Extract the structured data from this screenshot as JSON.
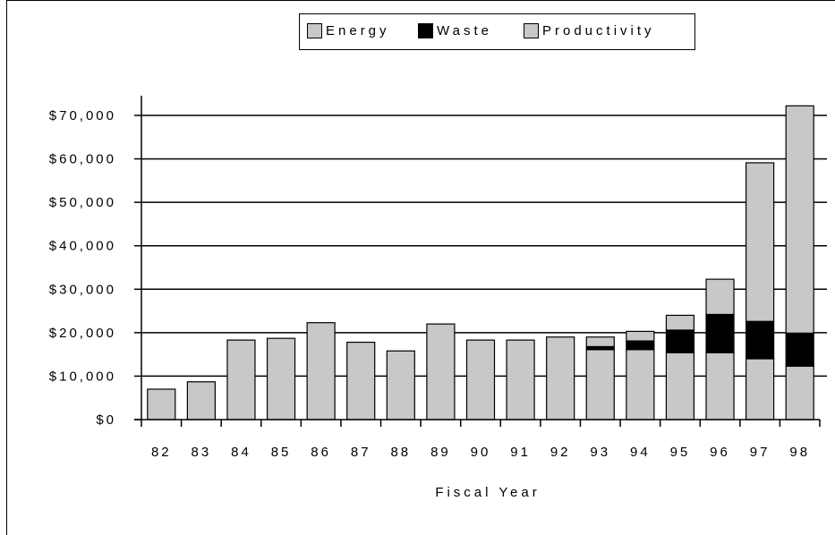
{
  "chart_data": {
    "type": "bar",
    "stacked": true,
    "title": "",
    "xlabel": "Fiscal Year",
    "ylabel": "",
    "categories": [
      "82",
      "83",
      "84",
      "85",
      "86",
      "87",
      "88",
      "89",
      "90",
      "91",
      "92",
      "93",
      "94",
      "95",
      "96",
      "97",
      "98"
    ],
    "series": [
      {
        "name": "Energy",
        "color": "#c8c8c8",
        "values": [
          7000,
          8700,
          18300,
          18700,
          22300,
          17800,
          15800,
          22000,
          18300,
          18300,
          19000,
          16100,
          16100,
          15400,
          15400,
          14000,
          12300
        ]
      },
      {
        "name": "Waste",
        "color": "#000000",
        "values": [
          0,
          0,
          0,
          0,
          0,
          0,
          0,
          0,
          0,
          0,
          0,
          700,
          2000,
          5200,
          8800,
          8600,
          7600
        ]
      },
      {
        "name": "Productivity",
        "color": "#c8c8c8",
        "values": [
          0,
          0,
          0,
          0,
          0,
          0,
          0,
          0,
          0,
          0,
          0,
          2200,
          2200,
          3400,
          8100,
          36500,
          52300
        ]
      }
    ],
    "ylim": [
      0,
      70000
    ],
    "yticks": [
      0,
      10000,
      20000,
      30000,
      40000,
      50000,
      60000,
      70000
    ],
    "ytick_labels": [
      "$0",
      "$10,000",
      "$20,000",
      "$30,000",
      "$40,000",
      "$50,000",
      "$60,000",
      "$70,000"
    ],
    "grid": true,
    "legend_position": "top"
  }
}
